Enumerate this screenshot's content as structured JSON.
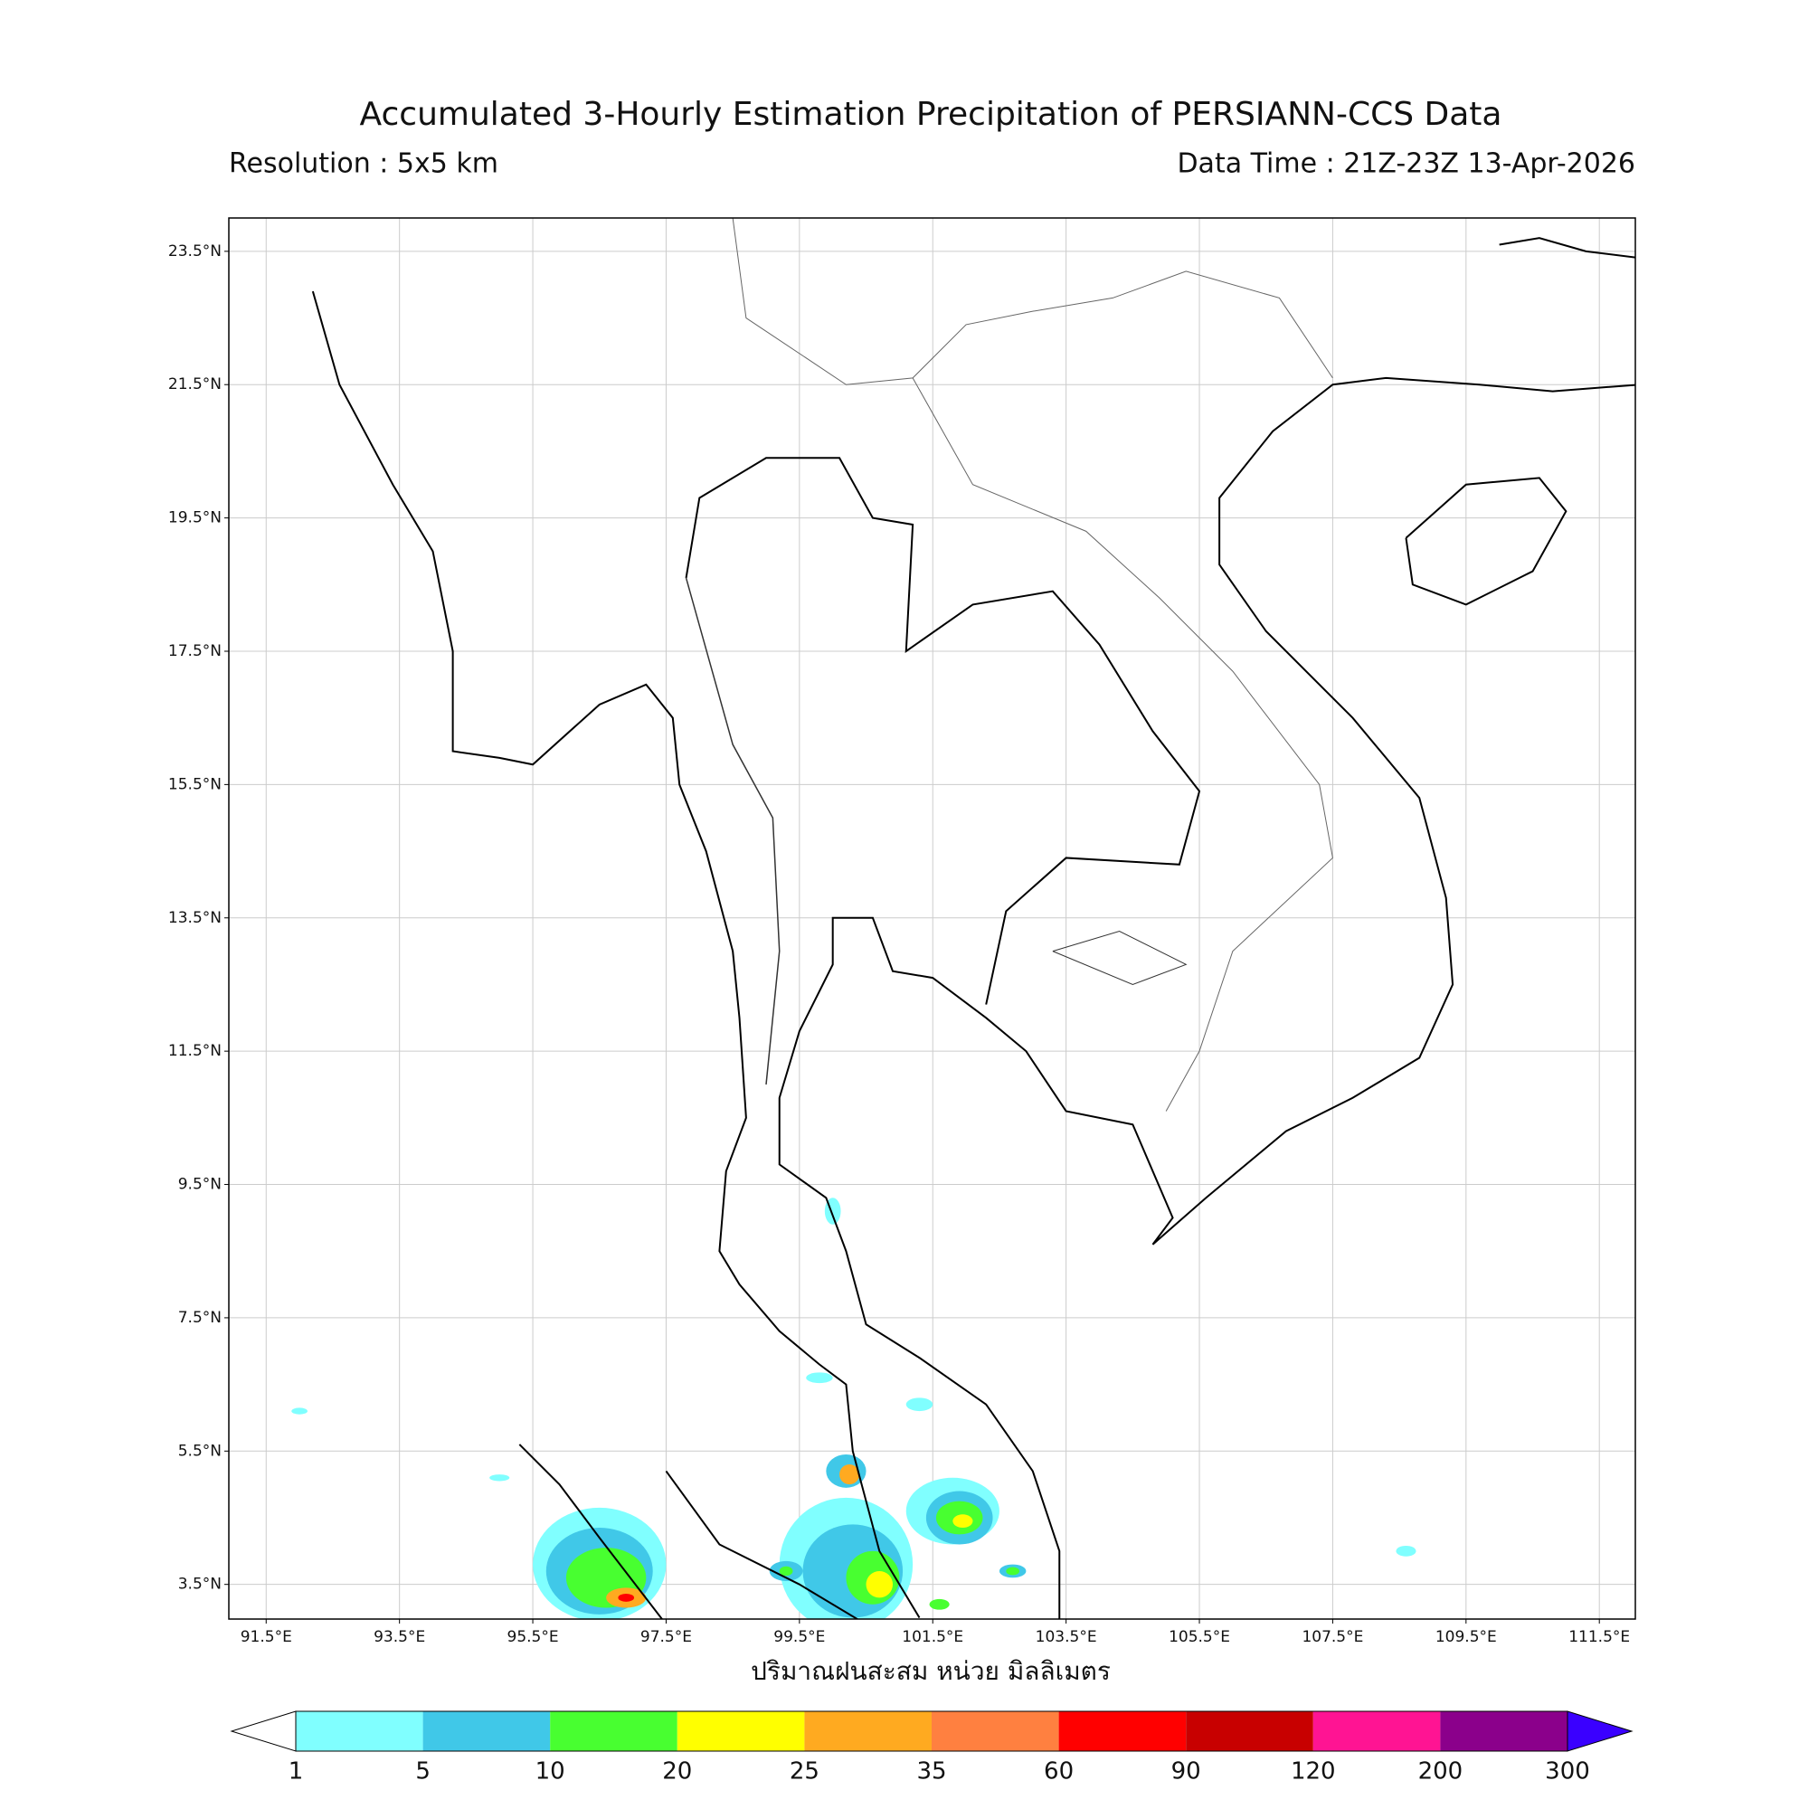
{
  "header": {
    "title": "Accumulated 3-Hourly Estimation Precipitation of PERSIANN-CCS Data",
    "resolution": "Resolution : 5x5 km",
    "data_time": "Data Time : 21Z-23Z 13-Apr-2026"
  },
  "map": {
    "lat_ticks": [
      {
        "value": 23.5,
        "label": "23.5°N"
      },
      {
        "value": 21.5,
        "label": "21.5°N"
      },
      {
        "value": 19.5,
        "label": "19.5°N"
      },
      {
        "value": 17.5,
        "label": "17.5°N"
      },
      {
        "value": 15.5,
        "label": "15.5°N"
      },
      {
        "value": 13.5,
        "label": "13.5°N"
      },
      {
        "value": 11.5,
        "label": "11.5°N"
      },
      {
        "value": 9.5,
        "label": "9.5°N"
      },
      {
        "value": 7.5,
        "label": "7.5°N"
      },
      {
        "value": 5.5,
        "label": "5.5°N"
      },
      {
        "value": 3.5,
        "label": "3.5°N"
      }
    ],
    "lon_ticks": [
      {
        "value": 91.5,
        "label": "91.5°E"
      },
      {
        "value": 93.5,
        "label": "93.5°E"
      },
      {
        "value": 95.5,
        "label": "95.5°E"
      },
      {
        "value": 97.5,
        "label": "97.5°E"
      },
      {
        "value": 99.5,
        "label": "99.5°E"
      },
      {
        "value": 101.5,
        "label": "101.5°E"
      },
      {
        "value": 103.5,
        "label": "103.5°E"
      },
      {
        "value": 105.5,
        "label": "105.5°E"
      },
      {
        "value": 107.5,
        "label": "107.5°E"
      },
      {
        "value": 109.5,
        "label": "109.5°E"
      },
      {
        "value": 111.5,
        "label": "111.5°E"
      }
    ],
    "x_label": "ปริมาณฝนสะสม หน่วย มิลลิเมตร"
  },
  "colorbar": {
    "levels": [
      1,
      5,
      10,
      20,
      25,
      35,
      60,
      90,
      120,
      200,
      300
    ],
    "colors": [
      "#80ffff",
      "#40c8e8",
      "#48ff30",
      "#ffff00",
      "#ffaa20",
      "#ff8040",
      "#ff0000",
      "#c80000",
      "#ff1493",
      "#8b008b"
    ],
    "under_color": "#ffffff",
    "over_color": "#3a00ff"
  }
}
